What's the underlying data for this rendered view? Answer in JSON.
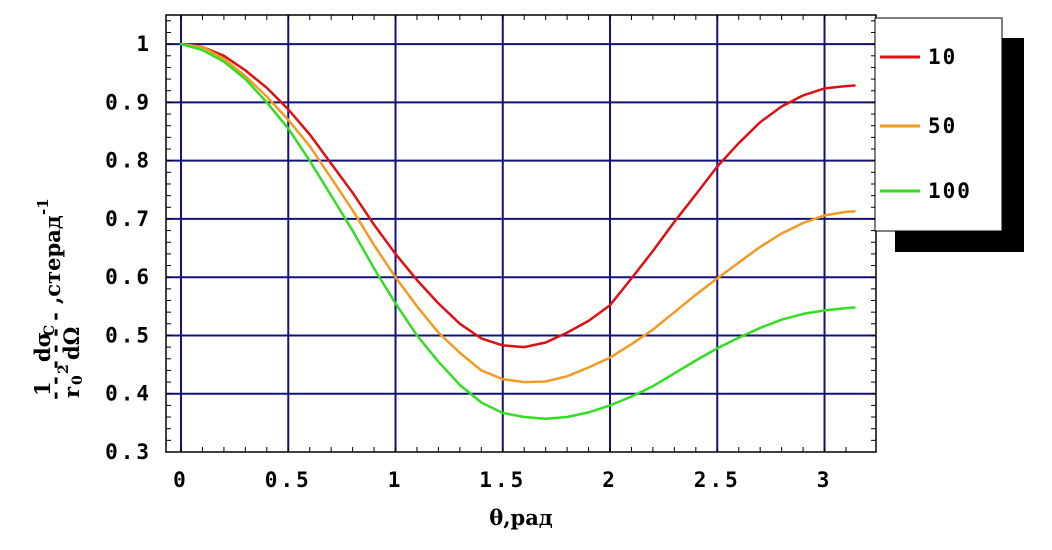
{
  "chart_data": {
    "type": "line",
    "xlabel": "θ,рад",
    "ylabel": {
      "numerator_1": "1",
      "denominator_r": "r",
      "denominator_sub": "0",
      "denominator_sup": "2",
      "numerator_d": "dσ",
      "numerator_sub": "C",
      "denominator_domega": "dΩ",
      "unit": ",стерад",
      "unit_exp": "-1"
    },
    "xlim": [
      -0.07,
      3.24
    ],
    "ylim": [
      0.3,
      1.05
    ],
    "x_ticks": [
      0,
      0.5,
      1,
      1.5,
      2,
      2.5,
      3
    ],
    "x_tick_labels": [
      "0",
      "0.5",
      "1",
      "1.5",
      "2",
      "2.5",
      "3"
    ],
    "y_ticks": [
      0.3,
      0.4,
      0.5,
      0.6,
      0.7,
      0.8,
      0.9,
      1
    ],
    "y_tick_labels": [
      "0.3",
      "0.4",
      "0.5",
      "0.6",
      "0.7",
      "0.8",
      "0.9",
      "1"
    ],
    "grid": true,
    "legend_position": "right-top",
    "series": [
      {
        "name": "10",
        "color": "#dd1111",
        "x": [
          0,
          0.1,
          0.2,
          0.3,
          0.4,
          0.5,
          0.6,
          0.7,
          0.8,
          0.9,
          1.0,
          1.1,
          1.2,
          1.3,
          1.4,
          1.5,
          1.6,
          1.7,
          1.8,
          1.9,
          2.0,
          2.1,
          2.2,
          2.3,
          2.4,
          2.5,
          2.6,
          2.7,
          2.8,
          2.9,
          3.0,
          3.1,
          3.14
        ],
        "values": [
          1.0,
          0.995,
          0.98,
          0.955,
          0.925,
          0.888,
          0.845,
          0.795,
          0.745,
          0.69,
          0.64,
          0.595,
          0.555,
          0.52,
          0.495,
          0.483,
          0.48,
          0.488,
          0.505,
          0.525,
          0.552,
          0.598,
          0.645,
          0.695,
          0.742,
          0.79,
          0.83,
          0.866,
          0.893,
          0.912,
          0.924,
          0.928,
          0.929
        ]
      },
      {
        "name": "50",
        "color": "#f29a22",
        "x": [
          0,
          0.1,
          0.2,
          0.3,
          0.4,
          0.5,
          0.6,
          0.7,
          0.8,
          0.9,
          1.0,
          1.1,
          1.2,
          1.3,
          1.4,
          1.5,
          1.6,
          1.7,
          1.8,
          1.9,
          2.0,
          2.1,
          2.2,
          2.3,
          2.4,
          2.5,
          2.6,
          2.7,
          2.8,
          2.9,
          3.0,
          3.1,
          3.14
        ],
        "values": [
          1.0,
          0.995,
          0.975,
          0.945,
          0.91,
          0.87,
          0.825,
          0.77,
          0.715,
          0.655,
          0.6,
          0.55,
          0.505,
          0.47,
          0.44,
          0.425,
          0.42,
          0.421,
          0.43,
          0.445,
          0.462,
          0.485,
          0.51,
          0.54,
          0.57,
          0.598,
          0.625,
          0.652,
          0.675,
          0.693,
          0.706,
          0.712,
          0.713
        ]
      },
      {
        "name": "100",
        "color": "#33dd22",
        "x": [
          0,
          0.1,
          0.2,
          0.3,
          0.4,
          0.5,
          0.6,
          0.7,
          0.8,
          0.9,
          1.0,
          1.1,
          1.2,
          1.3,
          1.4,
          1.5,
          1.6,
          1.7,
          1.8,
          1.9,
          2.0,
          2.1,
          2.2,
          2.3,
          2.4,
          2.5,
          2.6,
          2.7,
          2.8,
          2.9,
          3.0,
          3.1,
          3.14
        ],
        "values": [
          1.0,
          0.99,
          0.97,
          0.94,
          0.9,
          0.855,
          0.8,
          0.74,
          0.68,
          0.615,
          0.555,
          0.5,
          0.455,
          0.415,
          0.385,
          0.367,
          0.36,
          0.357,
          0.36,
          0.368,
          0.38,
          0.395,
          0.413,
          0.435,
          0.457,
          0.478,
          0.496,
          0.513,
          0.527,
          0.537,
          0.543,
          0.547,
          0.548
        ]
      }
    ]
  }
}
